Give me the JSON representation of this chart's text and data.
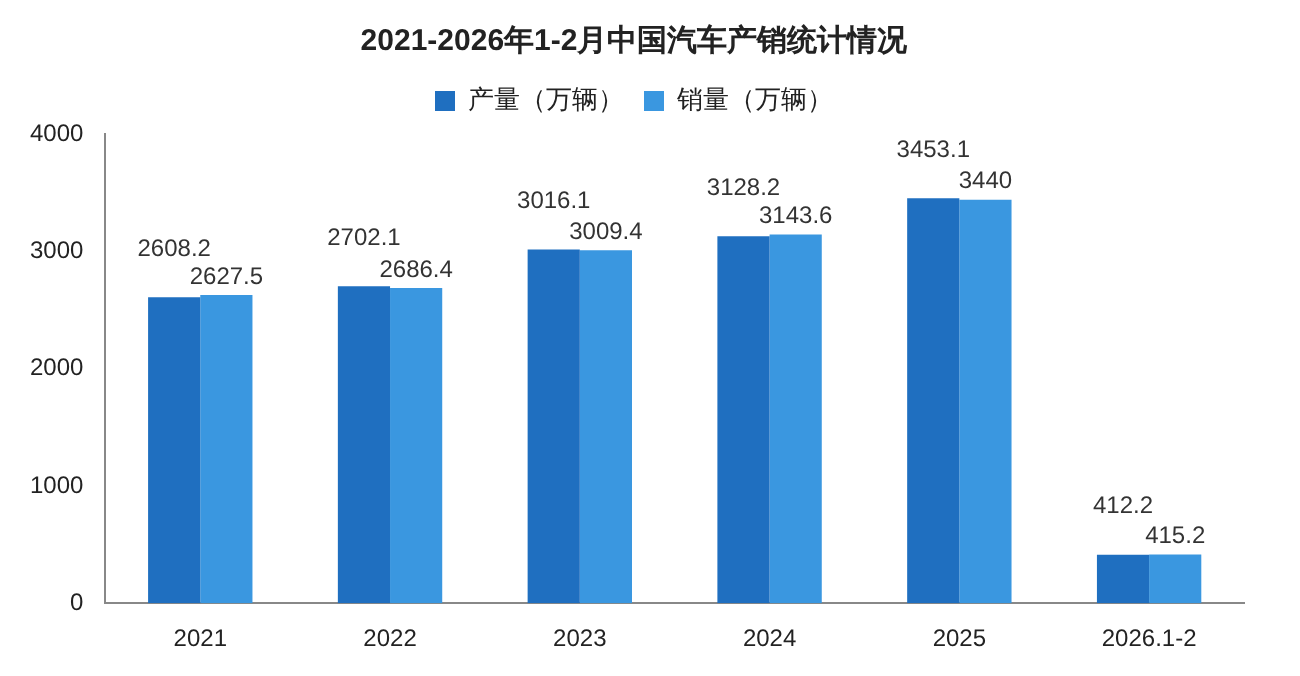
{
  "chart_data": {
    "type": "bar",
    "title": "2021-2026年1-2月中国汽车产销统计情况",
    "categories": [
      "2021",
      "2022",
      "2023",
      "2024",
      "2025",
      "2026.1-2"
    ],
    "series": [
      {
        "name": "产量（万辆）",
        "color": "#1f6fc0",
        "values": [
          2608.2,
          2702.1,
          3016.1,
          3128.2,
          3453.1,
          412.2
        ]
      },
      {
        "name": "销量（万辆）",
        "color": "#3a97e0",
        "values": [
          2627.5,
          2686.4,
          3009.4,
          3143.6,
          3440,
          415.2
        ]
      }
    ],
    "ylim": [
      0,
      4000
    ],
    "yticks": [
      0,
      1000,
      2000,
      3000,
      4000
    ],
    "grid": false,
    "legend": "top",
    "data_labels": true
  }
}
